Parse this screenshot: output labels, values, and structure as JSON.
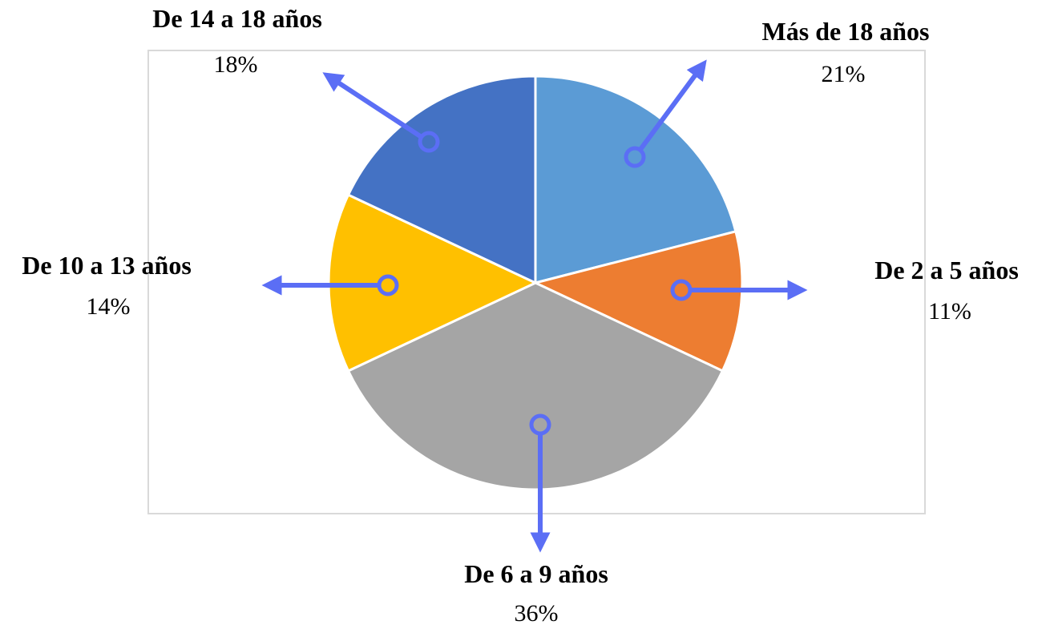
{
  "chart_data": {
    "type": "pie",
    "categories": [
      "Más de 18 años",
      "De 2 a 5 años",
      "De 6 a 9 años",
      "De 10 a 13 años",
      "De 14 a 18 años"
    ],
    "values": [
      21,
      11,
      36,
      14,
      18
    ],
    "value_labels": [
      "21%",
      "11%",
      "36%",
      "14%",
      "18%"
    ],
    "colors": [
      "#5B9BD5",
      "#ED7D31",
      "#A5A5A5",
      "#FFC000",
      "#4472C4"
    ],
    "start_angle": "12 o'clock",
    "direction": "clockwise",
    "annotation_color": "#5B6EF5",
    "frame_border_color": "#D9D9D9"
  }
}
